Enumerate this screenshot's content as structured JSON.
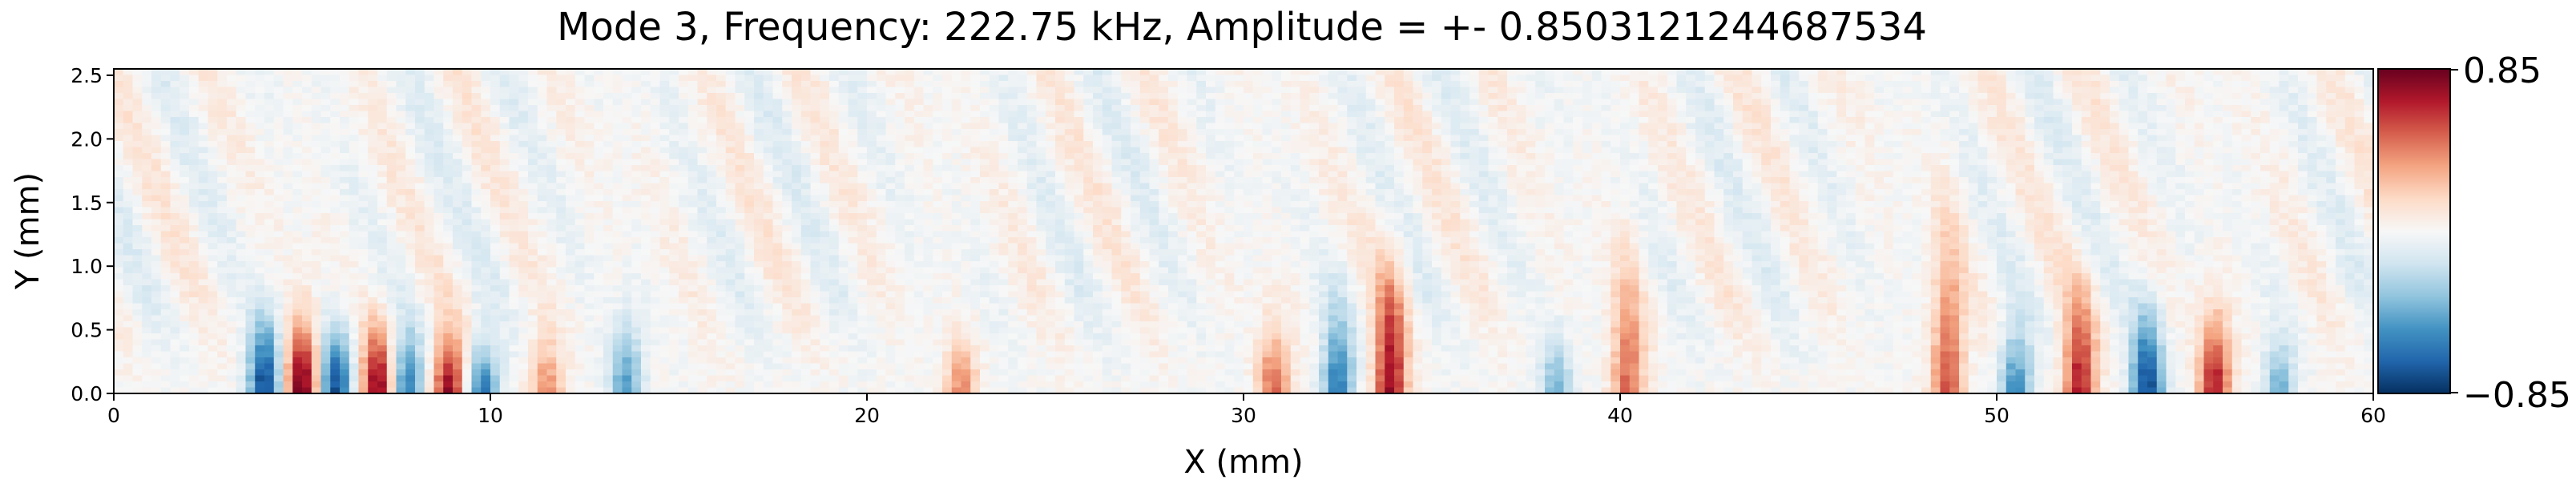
{
  "chart_data": {
    "type": "heatmap",
    "title": "Mode 3, Frequency: 222.75 kHz, Amplitude = +- 0.8503121244687534",
    "xlabel": "X (mm)",
    "ylabel": "Y (mm)",
    "xlim": [
      0,
      60
    ],
    "ylim": [
      0,
      2.55
    ],
    "xticks": [
      0,
      10,
      20,
      30,
      40,
      50,
      60
    ],
    "yticks": [
      0.0,
      0.5,
      1.0,
      1.5,
      2.0,
      2.5
    ],
    "xtick_labels": [
      "0",
      "10",
      "20",
      "30",
      "40",
      "50",
      "60"
    ],
    "ytick_labels": [
      "0.0",
      "0.5",
      "1.0",
      "1.5",
      "2.0",
      "2.5"
    ],
    "colormap": "RdBu_r",
    "vmin": -0.85,
    "vmax": 0.85,
    "colorbar_labels": [
      "0.85",
      "−0.85"
    ],
    "features": [
      {
        "x": 4.0,
        "y_extent": 0.55,
        "value": -0.8
      },
      {
        "x": 5.0,
        "y_extent": 0.55,
        "value": 0.85
      },
      {
        "x": 5.9,
        "y_extent": 0.5,
        "value": -0.75
      },
      {
        "x": 7.0,
        "y_extent": 0.5,
        "value": 0.8
      },
      {
        "x": 7.8,
        "y_extent": 0.45,
        "value": -0.6
      },
      {
        "x": 8.9,
        "y_extent": 0.45,
        "value": 0.75
      },
      {
        "x": 9.8,
        "y_extent": 0.4,
        "value": -0.6
      },
      {
        "x": 11.5,
        "y_extent": 0.4,
        "value": 0.4
      },
      {
        "x": 13.6,
        "y_extent": 0.5,
        "value": -0.5
      },
      {
        "x": 22.5,
        "y_extent": 0.4,
        "value": 0.4
      },
      {
        "x": 30.8,
        "y_extent": 0.5,
        "value": 0.5
      },
      {
        "x": 32.5,
        "y_extent": 0.6,
        "value": -0.6
      },
      {
        "x": 33.9,
        "y_extent": 0.9,
        "value": 0.75
      },
      {
        "x": 38.3,
        "y_extent": 0.4,
        "value": -0.4
      },
      {
        "x": 40.2,
        "y_extent": 0.9,
        "value": 0.5
      },
      {
        "x": 48.7,
        "y_extent": 1.1,
        "value": 0.55
      },
      {
        "x": 50.5,
        "y_extent": 0.5,
        "value": -0.55
      },
      {
        "x": 52.2,
        "y_extent": 0.7,
        "value": 0.7
      },
      {
        "x": 54.0,
        "y_extent": 0.6,
        "value": -0.8
      },
      {
        "x": 55.8,
        "y_extent": 0.6,
        "value": 0.7
      },
      {
        "x": 57.5,
        "y_extent": 0.4,
        "value": -0.4
      }
    ]
  }
}
